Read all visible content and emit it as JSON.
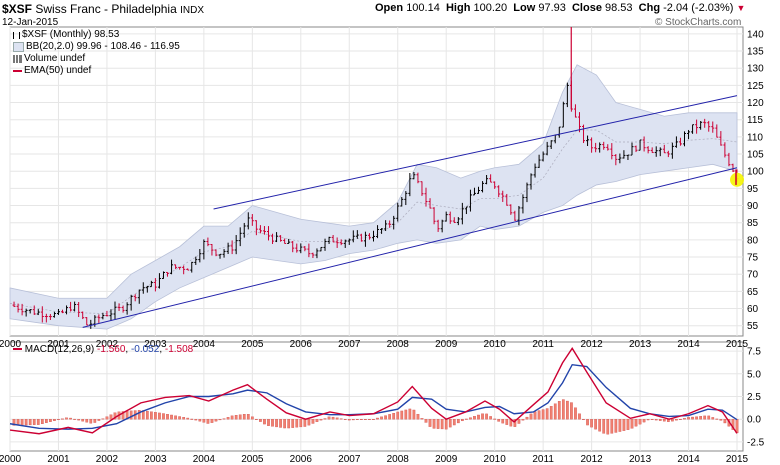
{
  "header": {
    "symbol": "$XSF",
    "name": "Swiss Franc - Philadelphia",
    "exchange": "INDX",
    "date": "12-Jan-2015",
    "open_label": "Open",
    "open": "100.14",
    "high_label": "High",
    "high": "100.20",
    "low_label": "Low",
    "low": "97.93",
    "close_label": "Close",
    "close": "98.53",
    "chg_label": "Chg",
    "chg": "-2.04 (-2.03%)",
    "watermark": "© StockCharts.com"
  },
  "legend": {
    "main": "$XSF (Monthly) 98.53",
    "bb": "BB(20,2.0) 99.96 - 108.46 - 116.95",
    "volume": "Volume undef",
    "ema": "EMA(50) undef"
  },
  "macd_legend": {
    "name": "MACD(12,26,9)",
    "v1": "-1.560",
    "v2": "-0.052",
    "v3": "-1.508"
  },
  "colors": {
    "up": "#000000",
    "down": "#cc0033",
    "channel": "#2222aa",
    "bb_fill": "#dde3f2",
    "macd": "#cc0033",
    "signal": "#2244aa",
    "hist": "#f08070",
    "highlight": "#f5f500"
  },
  "chart_data": [
    {
      "type": "candlestick",
      "title": "$XSF Swiss Franc - Philadelphia INDX (Monthly)",
      "x_ticks": [
        "2000",
        "2001",
        "2002",
        "2003",
        "2004",
        "2005",
        "2006",
        "2007",
        "2008",
        "2009",
        "2010",
        "2011",
        "2012",
        "2013",
        "2014",
        "2015"
      ],
      "y_ticks": [
        55,
        60,
        65,
        70,
        75,
        80,
        85,
        90,
        95,
        100,
        105,
        110,
        115,
        120,
        125,
        130,
        135,
        140
      ],
      "ylim": [
        52,
        142
      ],
      "close_path": [
        [
          2000.0,
          61
        ],
        [
          2000.5,
          59
        ],
        [
          2001.0,
          58
        ],
        [
          2001.3,
          61
        ],
        [
          2001.5,
          57
        ],
        [
          2001.6,
          55
        ],
        [
          2001.9,
          58
        ],
        [
          2002.3,
          60
        ],
        [
          2002.7,
          66
        ],
        [
          2003.0,
          67
        ],
        [
          2003.3,
          72
        ],
        [
          2003.7,
          72
        ],
        [
          2004.0,
          79
        ],
        [
          2004.3,
          76
        ],
        [
          2004.6,
          78
        ],
        [
          2004.9,
          86
        ],
        [
          2005.1,
          83
        ],
        [
          2005.5,
          80
        ],
        [
          2005.8,
          78
        ],
        [
          2006.2,
          76
        ],
        [
          2006.6,
          80
        ],
        [
          2007.0,
          80
        ],
        [
          2007.4,
          81
        ],
        [
          2007.8,
          84
        ],
        [
          2008.1,
          92
        ],
        [
          2008.3,
          99
        ],
        [
          2008.5,
          94
        ],
        [
          2008.7,
          88
        ],
        [
          2008.8,
          83
        ],
        [
          2009.0,
          87
        ],
        [
          2009.2,
          86
        ],
        [
          2009.5,
          92
        ],
        [
          2009.8,
          97
        ],
        [
          2010.0,
          96
        ],
        [
          2010.3,
          90
        ],
        [
          2010.4,
          86
        ],
        [
          2010.6,
          93
        ],
        [
          2010.8,
          101
        ],
        [
          2011.0,
          105
        ],
        [
          2011.3,
          111
        ],
        [
          2011.5,
          125
        ],
        [
          2011.6,
          118
        ],
        [
          2011.8,
          110
        ],
        [
          2012.0,
          107
        ],
        [
          2012.3,
          108
        ],
        [
          2012.5,
          104
        ],
        [
          2012.7,
          105
        ],
        [
          2013.0,
          108
        ],
        [
          2013.3,
          106
        ],
        [
          2013.5,
          105
        ],
        [
          2013.8,
          108
        ],
        [
          2014.0,
          112
        ],
        [
          2014.3,
          114
        ],
        [
          2014.5,
          112
        ],
        [
          2014.7,
          106
        ],
        [
          2014.9,
          101
        ],
        [
          2015.0,
          98.53
        ]
      ],
      "bollinger": {
        "upper": [
          [
            2000,
            66
          ],
          [
            2001,
            63
          ],
          [
            2002,
            63
          ],
          [
            2002.5,
            70
          ],
          [
            2003,
            74
          ],
          [
            2003.5,
            78
          ],
          [
            2004,
            84
          ],
          [
            2004.5,
            84
          ],
          [
            2005,
            90
          ],
          [
            2005.5,
            88
          ],
          [
            2006,
            86
          ],
          [
            2006.5,
            85
          ],
          [
            2007,
            84
          ],
          [
            2007.5,
            85
          ],
          [
            2008,
            91
          ],
          [
            2008.4,
            102
          ],
          [
            2008.8,
            101
          ],
          [
            2009.3,
            98
          ],
          [
            2009.7,
            100
          ],
          [
            2010,
            101
          ],
          [
            2010.5,
            102
          ],
          [
            2011,
            108
          ],
          [
            2011.4,
            123
          ],
          [
            2011.7,
            131
          ],
          [
            2012.1,
            128
          ],
          [
            2012.5,
            120
          ],
          [
            2013,
            118
          ],
          [
            2013.5,
            116
          ],
          [
            2014,
            117
          ],
          [
            2014.5,
            117
          ],
          [
            2015,
            117
          ]
        ],
        "lower": [
          [
            2000,
            57
          ],
          [
            2001,
            55
          ],
          [
            2002,
            54
          ],
          [
            2002.5,
            57
          ],
          [
            2003,
            62
          ],
          [
            2003.5,
            66
          ],
          [
            2004,
            69
          ],
          [
            2004.5,
            72
          ],
          [
            2005,
            75
          ],
          [
            2005.5,
            74
          ],
          [
            2006,
            73
          ],
          [
            2006.5,
            74
          ],
          [
            2007,
            76
          ],
          [
            2007.5,
            77
          ],
          [
            2008,
            79
          ],
          [
            2008.4,
            80
          ],
          [
            2008.8,
            79
          ],
          [
            2009.3,
            80
          ],
          [
            2009.7,
            84
          ],
          [
            2010,
            83
          ],
          [
            2010.5,
            84
          ],
          [
            2011,
            88
          ],
          [
            2011.4,
            90
          ],
          [
            2011.7,
            93
          ],
          [
            2012.1,
            96
          ],
          [
            2012.5,
            97
          ],
          [
            2013,
            99
          ],
          [
            2013.5,
            100
          ],
          [
            2014,
            101
          ],
          [
            2014.5,
            102
          ],
          [
            2015,
            100
          ]
        ]
      },
      "channel_lines": [
        {
          "from": [
            2001.5,
            54.5
          ],
          "to": [
            2015,
            101
          ]
        },
        {
          "from": [
            2004.2,
            89
          ],
          "to": [
            2015,
            122
          ]
        }
      ],
      "highlight_point": [
        2015.0,
        97.5
      ]
    },
    {
      "type": "line",
      "title": "MACD(12,26,9)",
      "y_ticks": [
        -2.5,
        0.0,
        2.5,
        5.0,
        7.5
      ],
      "ylim": [
        -3.5,
        8.5
      ],
      "series": [
        {
          "name": "MACD",
          "values": [
            [
              2000,
              -1.2
            ],
            [
              2000.6,
              -1.6
            ],
            [
              2001.2,
              -0.9
            ],
            [
              2001.7,
              -1.5
            ],
            [
              2002.2,
              0.3
            ],
            [
              2002.7,
              1.8
            ],
            [
              2003.2,
              2.4
            ],
            [
              2003.7,
              2.6
            ],
            [
              2004.1,
              2.0
            ],
            [
              2004.6,
              3.2
            ],
            [
              2004.9,
              3.8
            ],
            [
              2005.3,
              2.2
            ],
            [
              2005.7,
              0.7
            ],
            [
              2006.1,
              0.0
            ],
            [
              2006.6,
              0.8
            ],
            [
              2007.0,
              0.4
            ],
            [
              2007.5,
              0.6
            ],
            [
              2008.0,
              1.9
            ],
            [
              2008.3,
              3.6
            ],
            [
              2008.7,
              1.2
            ],
            [
              2009.0,
              0.0
            ],
            [
              2009.4,
              0.8
            ],
            [
              2009.8,
              2.0
            ],
            [
              2010.1,
              1.1
            ],
            [
              2010.4,
              -0.3
            ],
            [
              2010.8,
              1.6
            ],
            [
              2011.1,
              3.0
            ],
            [
              2011.4,
              6.2
            ],
            [
              2011.6,
              7.8
            ],
            [
              2011.9,
              5.2
            ],
            [
              2012.3,
              1.8
            ],
            [
              2012.8,
              0.1
            ],
            [
              2013.2,
              0.6
            ],
            [
              2013.6,
              0.0
            ],
            [
              2014.0,
              0.6
            ],
            [
              2014.4,
              1.5
            ],
            [
              2014.7,
              0.8
            ],
            [
              2015.0,
              -1.56
            ]
          ]
        },
        {
          "name": "Signal",
          "values": [
            [
              2000,
              -0.5
            ],
            [
              2000.6,
              -1.0
            ],
            [
              2001.2,
              -1.1
            ],
            [
              2001.7,
              -1.0
            ],
            [
              2002.2,
              -0.5
            ],
            [
              2002.7,
              0.8
            ],
            [
              2003.2,
              1.8
            ],
            [
              2003.7,
              2.5
            ],
            [
              2004.1,
              2.5
            ],
            [
              2004.6,
              2.8
            ],
            [
              2004.9,
              3.2
            ],
            [
              2005.3,
              2.9
            ],
            [
              2005.7,
              1.7
            ],
            [
              2006.1,
              0.8
            ],
            [
              2006.6,
              0.5
            ],
            [
              2007.0,
              0.5
            ],
            [
              2007.5,
              0.6
            ],
            [
              2008.0,
              1.1
            ],
            [
              2008.3,
              2.4
            ],
            [
              2008.7,
              2.2
            ],
            [
              2009.0,
              1.1
            ],
            [
              2009.4,
              0.8
            ],
            [
              2009.8,
              1.3
            ],
            [
              2010.1,
              1.4
            ],
            [
              2010.4,
              0.6
            ],
            [
              2010.8,
              0.8
            ],
            [
              2011.1,
              1.8
            ],
            [
              2011.4,
              4.0
            ],
            [
              2011.6,
              6.0
            ],
            [
              2011.9,
              5.8
            ],
            [
              2012.3,
              3.5
            ],
            [
              2012.8,
              1.2
            ],
            [
              2013.2,
              0.6
            ],
            [
              2013.6,
              0.3
            ],
            [
              2014.0,
              0.4
            ],
            [
              2014.4,
              1.1
            ],
            [
              2014.7,
              1.0
            ],
            [
              2015.0,
              -0.052
            ]
          ]
        }
      ]
    }
  ]
}
